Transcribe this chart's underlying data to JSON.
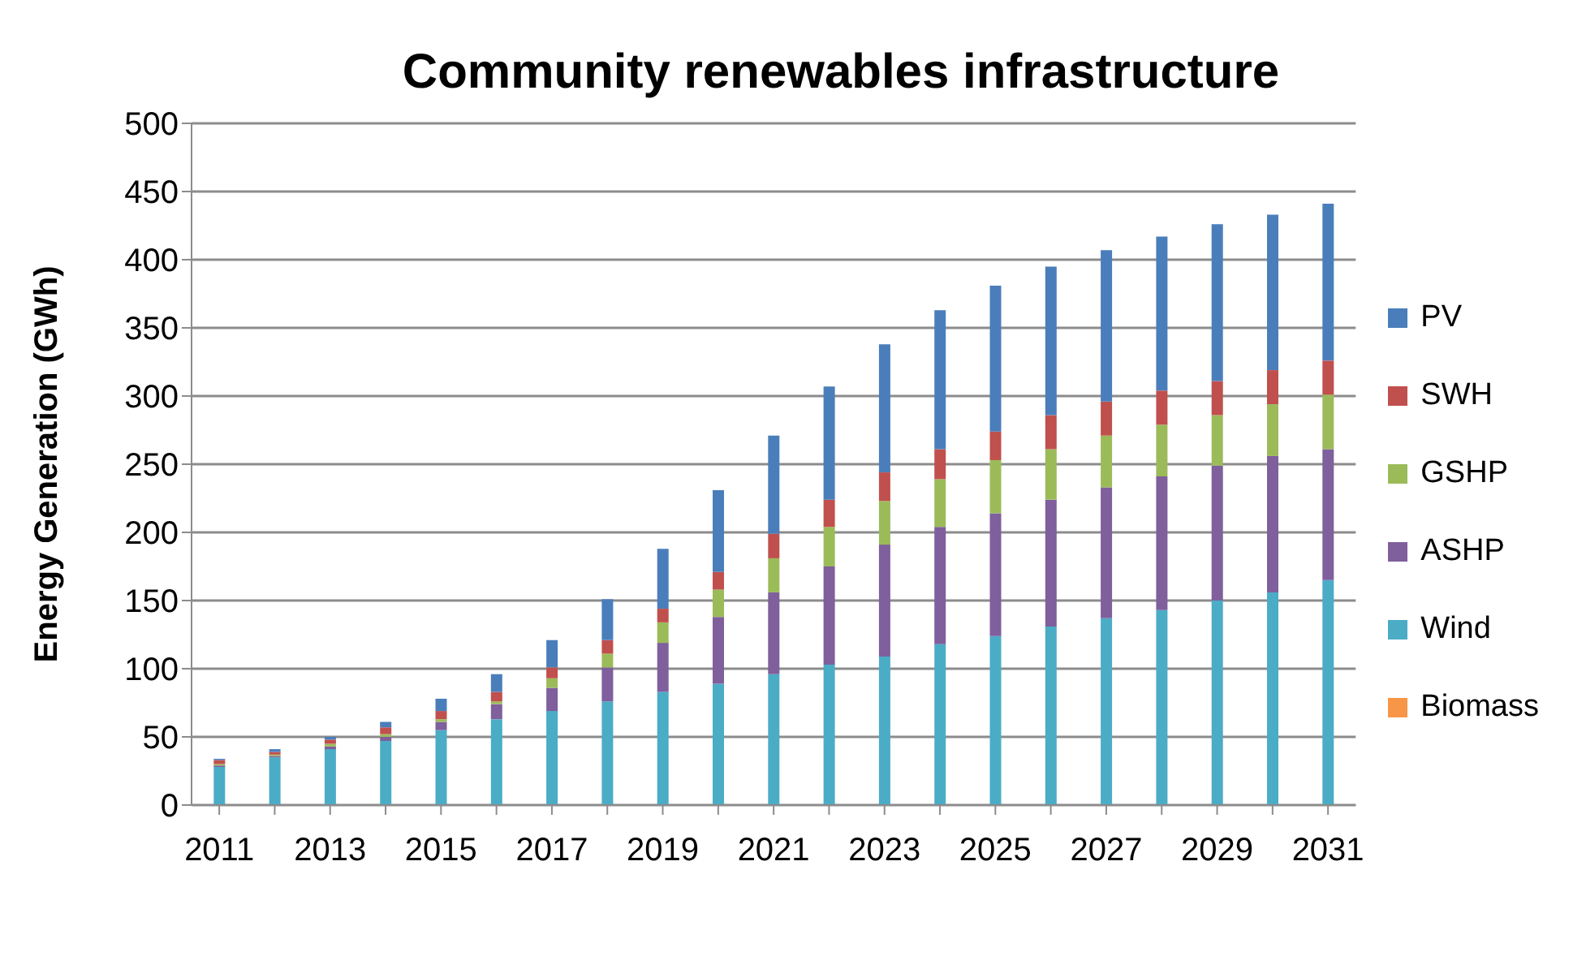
{
  "chart_data": {
    "type": "bar",
    "title": "Community renewables infrastructure",
    "ylabel": "Energy Generation (GWh)",
    "stacked": true,
    "grid": "y",
    "legend": "right",
    "categories": [
      "2011",
      null,
      "2013",
      null,
      "2015",
      null,
      "2017",
      null,
      "2019",
      null,
      "2021",
      null,
      "2023",
      null,
      "2025",
      null,
      "2027",
      null,
      "2029",
      null,
      "2031"
    ],
    "ylim": [
      0,
      500
    ],
    "yticks": [
      0,
      50,
      100,
      150,
      200,
      250,
      300,
      350,
      400,
      450,
      500
    ],
    "series": [
      {
        "name": "Biomass",
        "color": "#f79646",
        "values": [
          0,
          0,
          0,
          0,
          0,
          0,
          0,
          0,
          0,
          0,
          0,
          0,
          0,
          0,
          0,
          0,
          0,
          0,
          0,
          0,
          0
        ]
      },
      {
        "name": "Wind",
        "color": "#4bacc6",
        "values": [
          28,
          35,
          41,
          47,
          55,
          63,
          69,
          76,
          83,
          89,
          96,
          103,
          109,
          118,
          124,
          131,
          137,
          143,
          150,
          156,
          165
        ]
      },
      {
        "name": "ASHP",
        "color": "#7f5f9c",
        "values": [
          1,
          1,
          2,
          3,
          6,
          11,
          17,
          25,
          36,
          49,
          60,
          72,
          82,
          86,
          90,
          93,
          96,
          98,
          99,
          100,
          96
        ]
      },
      {
        "name": "GSHP",
        "color": "#9bbb59",
        "values": [
          1,
          1,
          2,
          2,
          2,
          2,
          7,
          10,
          15,
          20,
          25,
          29,
          32,
          35,
          39,
          37,
          38,
          38,
          37,
          38,
          40
        ]
      },
      {
        "name": "SWH",
        "color": "#c0504d",
        "values": [
          3,
          2,
          3,
          5,
          6,
          7,
          8,
          10,
          10,
          13,
          18,
          20,
          21,
          22,
          21,
          25,
          25,
          25,
          25,
          25,
          25
        ]
      },
      {
        "name": "PV",
        "color": "#4a7ebb",
        "values": [
          1,
          2,
          2,
          4,
          9,
          13,
          20,
          30,
          44,
          60,
          72,
          83,
          94,
          102,
          107,
          109,
          111,
          113,
          115,
          114,
          115
        ]
      }
    ]
  }
}
